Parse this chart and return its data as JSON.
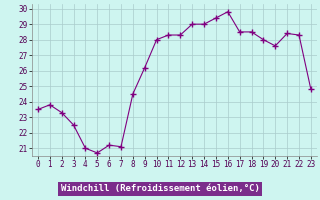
{
  "x": [
    0,
    1,
    2,
    3,
    4,
    5,
    6,
    7,
    8,
    9,
    10,
    11,
    12,
    13,
    14,
    15,
    16,
    17,
    18,
    19,
    20,
    21,
    22,
    23
  ],
  "y": [
    23.5,
    23.8,
    23.3,
    22.5,
    21.0,
    20.7,
    21.2,
    21.1,
    24.5,
    26.2,
    28.0,
    28.3,
    28.3,
    29.0,
    29.0,
    29.4,
    29.8,
    28.5,
    28.5,
    28.0,
    27.6,
    28.4,
    28.3,
    24.8
  ],
  "line_color": "#800080",
  "marker": "+",
  "marker_size": 4,
  "bg_color": "#cef5f0",
  "grid_color": "#aacccc",
  "xlabel": "Windchill (Refroidissement éolien,°C)",
  "xlabel_bg": "#7b2d8b",
  "xlabel_color": "#ffffff",
  "ylim_min": 20.5,
  "ylim_max": 30.3,
  "yticks": [
    21,
    22,
    23,
    24,
    25,
    26,
    27,
    28,
    29,
    30
  ],
  "xlim_min": -0.5,
  "xlim_max": 23.5,
  "xticks": [
    0,
    1,
    2,
    3,
    4,
    5,
    6,
    7,
    8,
    9,
    10,
    11,
    12,
    13,
    14,
    15,
    16,
    17,
    18,
    19,
    20,
    21,
    22,
    23
  ],
  "tick_fontsize": 5.5,
  "xlabel_fontsize": 6.5,
  "spine_color": "#888888"
}
